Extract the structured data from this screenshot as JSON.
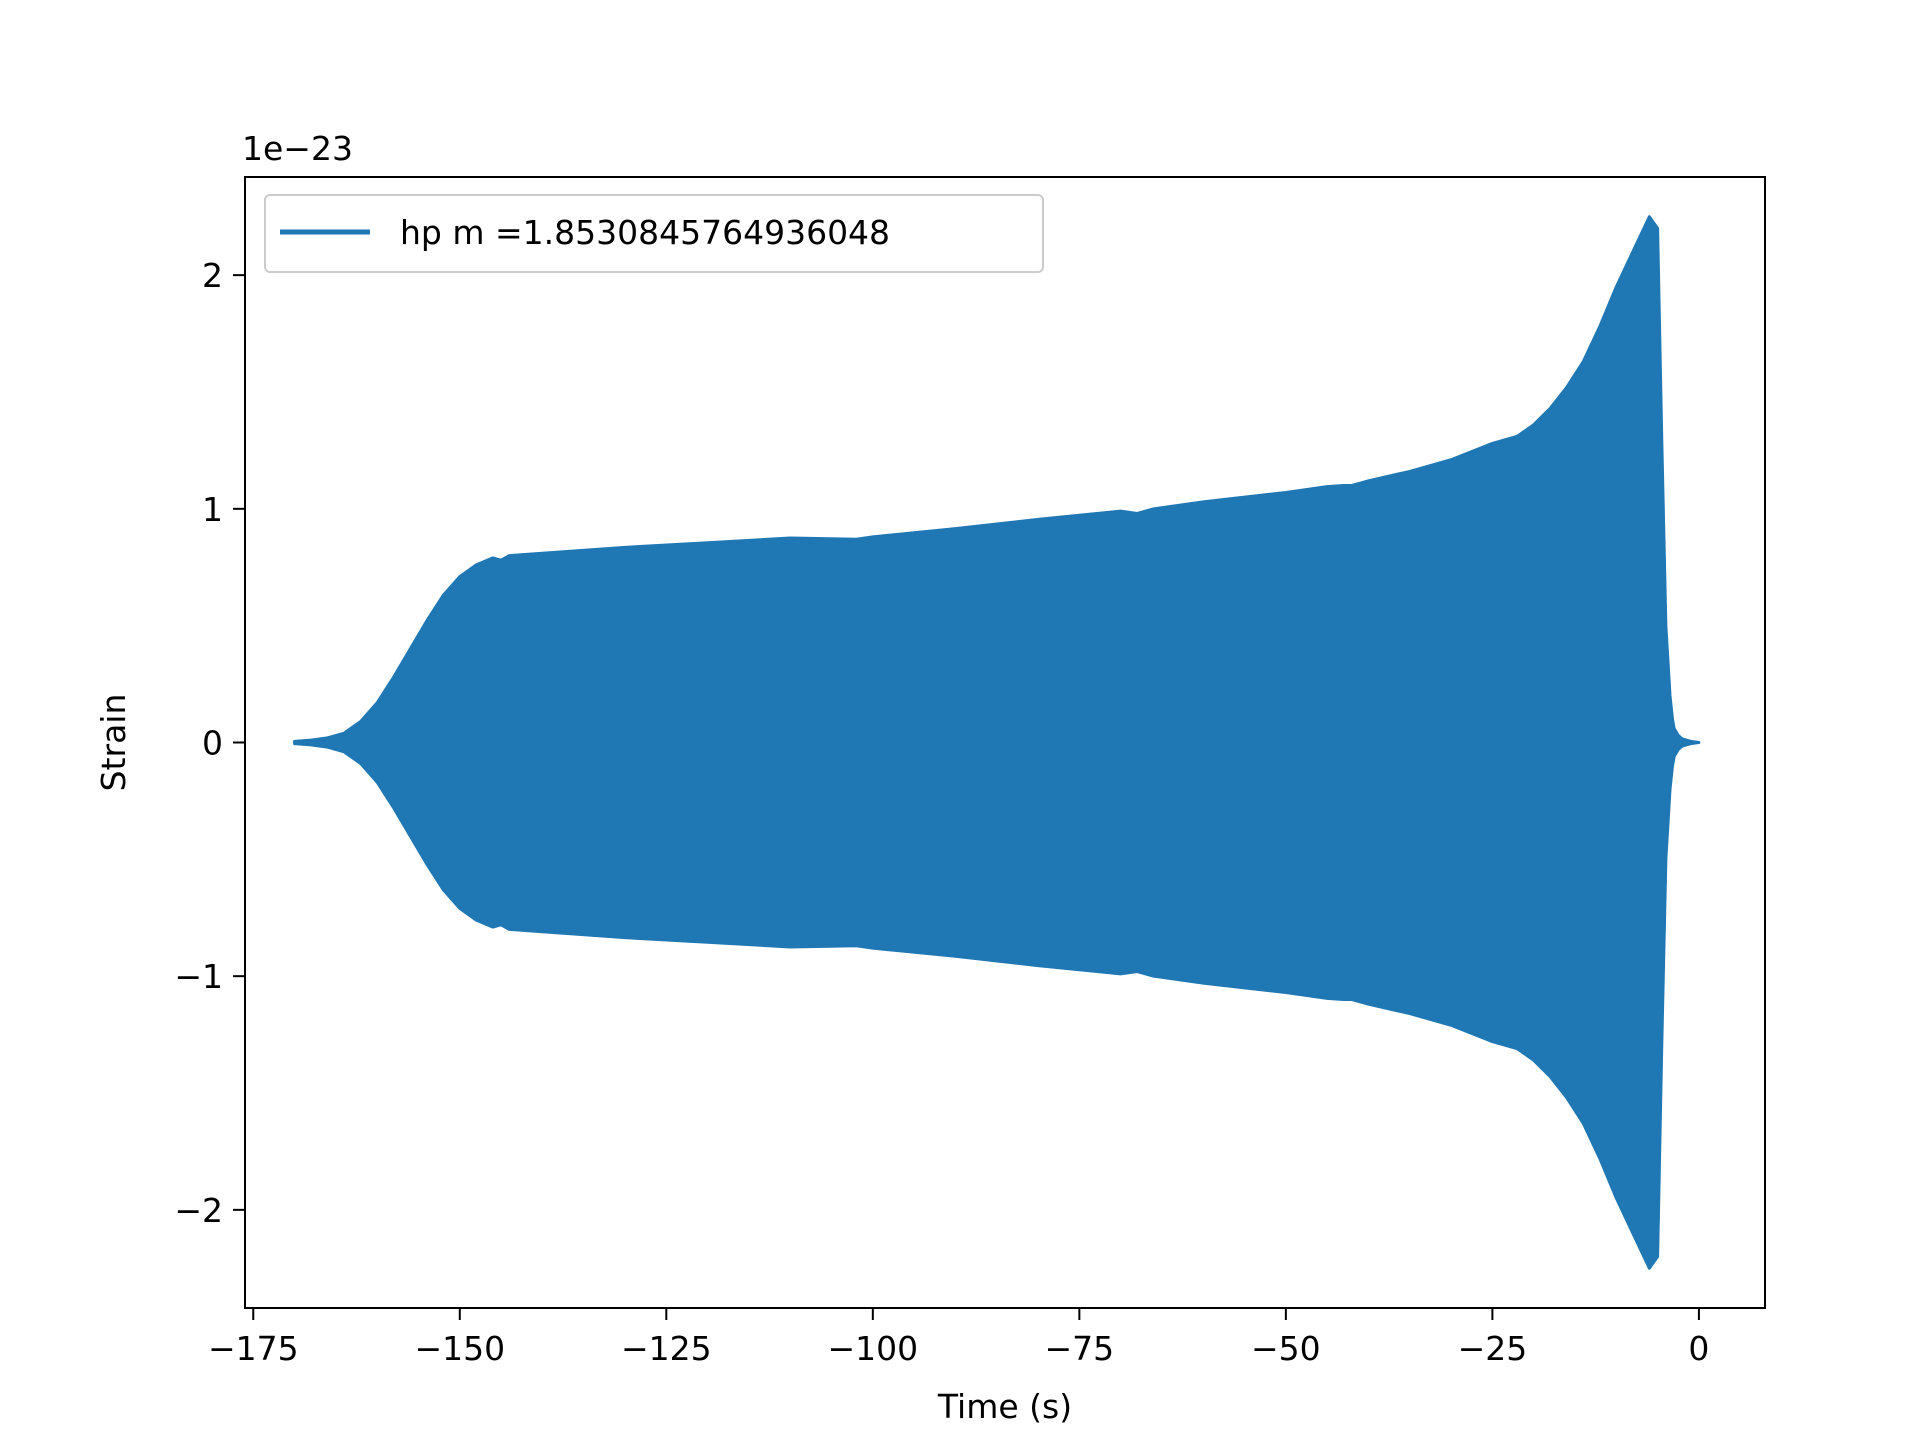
{
  "chart_data": {
    "type": "line",
    "xlabel": "Time (s)",
    "ylabel": "Strain",
    "y_offset_text": "1e−23",
    "y_multiplier": 1e-23,
    "xlim": [
      -176,
      8
    ],
    "ylim": [
      -2.42,
      2.42
    ],
    "xticks": [
      -175,
      -150,
      -125,
      -100,
      -75,
      -50,
      -25,
      0
    ],
    "xtick_labels": [
      "−175",
      "−150",
      "−125",
      "−100",
      "−75",
      "−50",
      "−25",
      "0"
    ],
    "yticks": [
      -2,
      -1,
      0,
      1,
      2
    ],
    "ytick_labels": [
      "−2",
      "−1",
      "0",
      "1",
      "2"
    ],
    "grid": false,
    "legend_position": "top-left",
    "series": [
      {
        "name": "hp m =1.8530845764936048",
        "color": "#1f77b4",
        "envelope": {
          "t": [
            -170,
            -168,
            -166,
            -164,
            -162,
            -160,
            -158,
            -156,
            -154,
            -152,
            -150,
            -148,
            -146,
            -145,
            -144,
            -140,
            -130,
            -120,
            -110,
            -102,
            -100,
            -90,
            -80,
            -70,
            -68,
            -66,
            -60,
            -55,
            -50,
            -45,
            -43,
            -42,
            -40,
            -35,
            -30,
            -25,
            -23,
            -22,
            -20,
            -18,
            -16,
            -14,
            -12,
            -10,
            -8,
            -6,
            -5,
            -4.5,
            -4,
            -3.5,
            -3.2,
            -3,
            -2.5,
            -2,
            -1,
            0
          ],
          "amp": [
            0.005,
            0.01,
            0.02,
            0.04,
            0.09,
            0.17,
            0.28,
            0.4,
            0.52,
            0.63,
            0.71,
            0.76,
            0.79,
            0.78,
            0.8,
            0.81,
            0.835,
            0.855,
            0.875,
            0.87,
            0.88,
            0.915,
            0.955,
            0.99,
            0.98,
            1.0,
            1.03,
            1.05,
            1.07,
            1.095,
            1.1,
            1.1,
            1.12,
            1.16,
            1.21,
            1.28,
            1.3,
            1.31,
            1.36,
            1.43,
            1.52,
            1.63,
            1.78,
            1.95,
            2.1,
            2.25,
            2.2,
            1.3,
            0.5,
            0.2,
            0.1,
            0.06,
            0.03,
            0.015,
            0.005,
            0.0
          ]
        }
      }
    ]
  }
}
